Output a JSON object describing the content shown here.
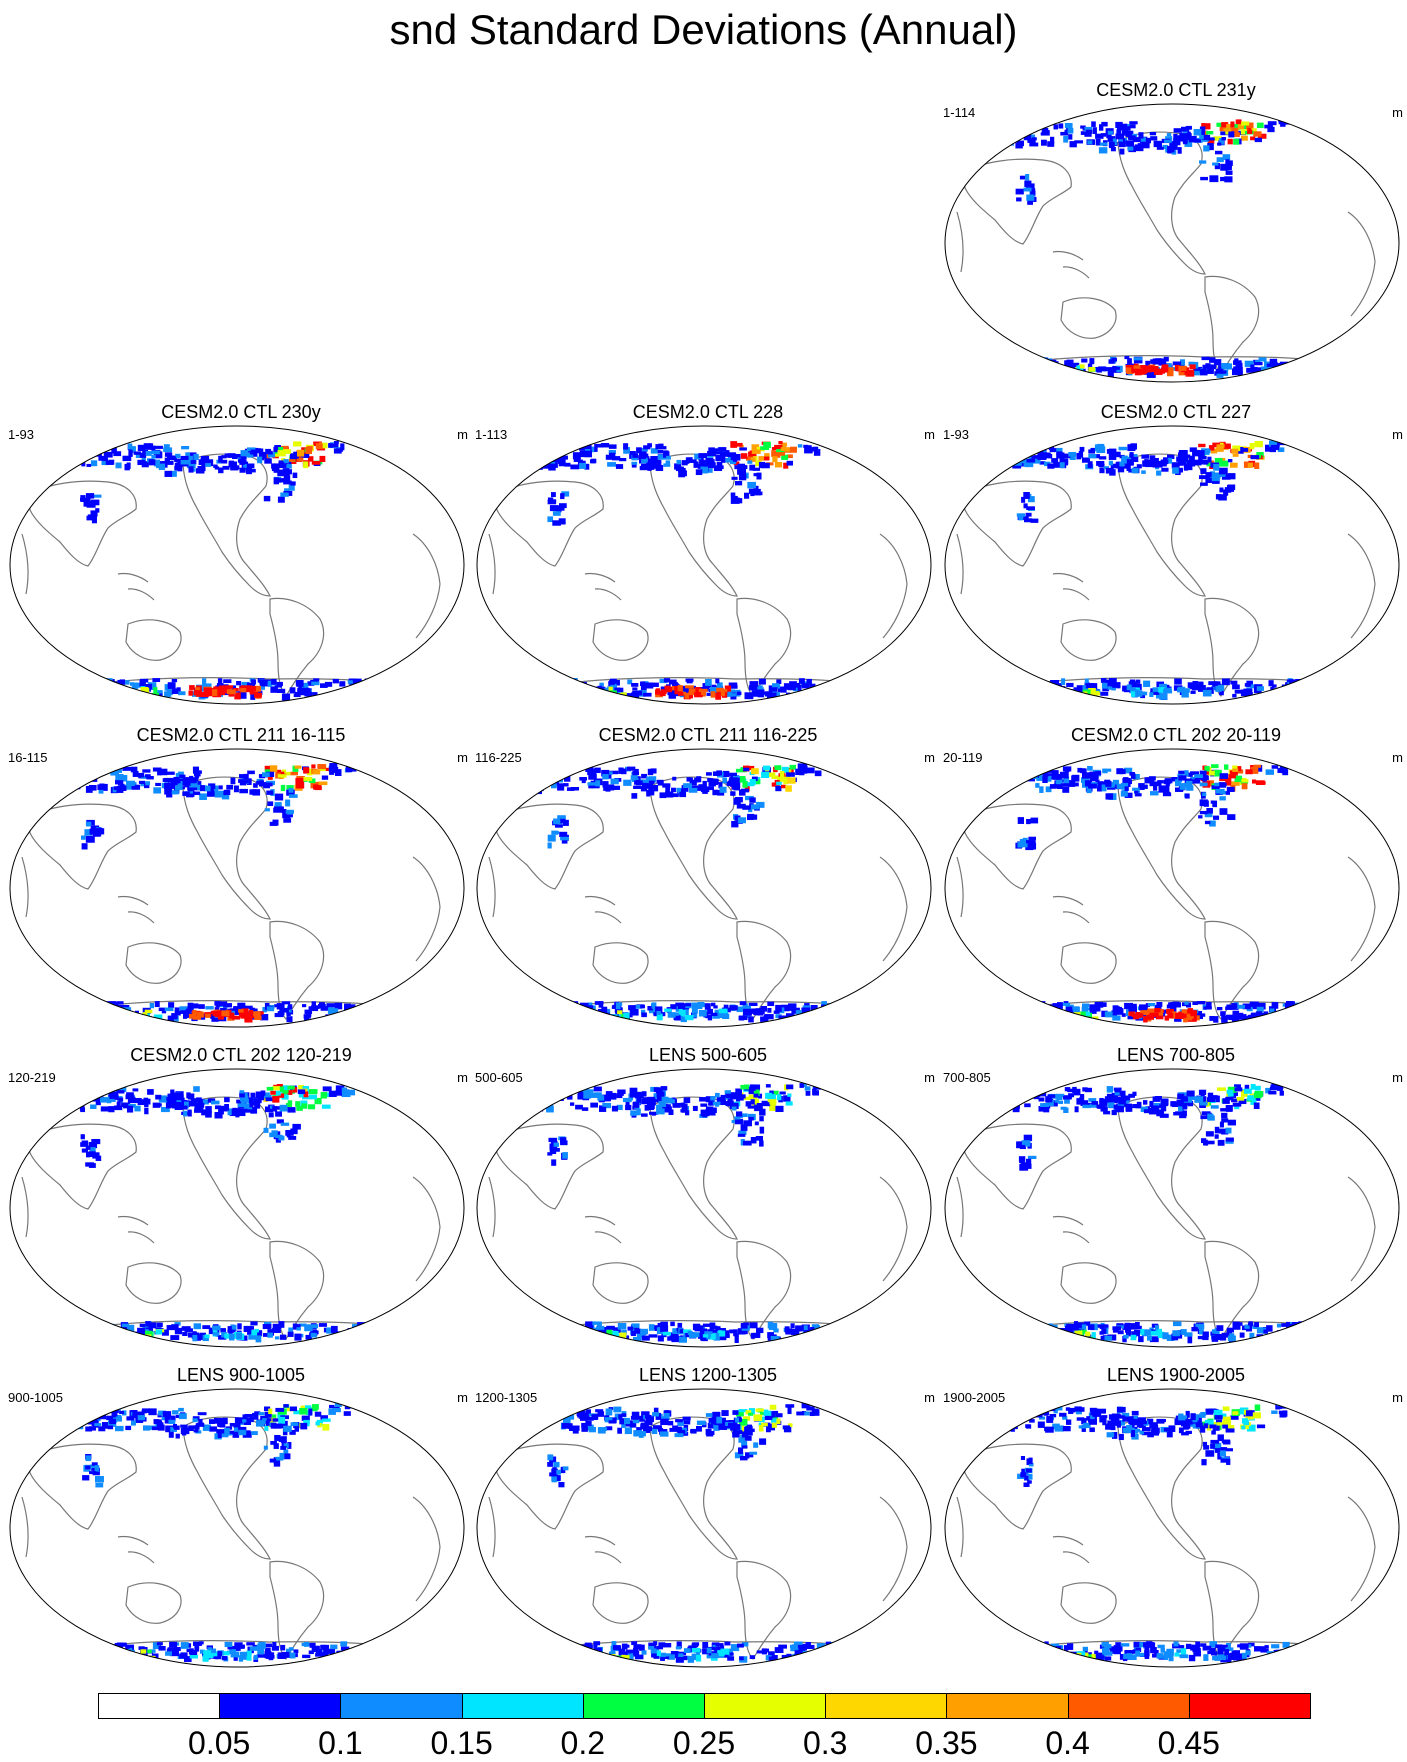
{
  "title": "snd Standard Deviations (Annual)",
  "units": "m",
  "colorbar": {
    "colors": [
      "#ffffff",
      "#0000ff",
      "#0f8cff",
      "#00e5ff",
      "#00ff40",
      "#e5ff00",
      "#ffd700",
      "#ffa000",
      "#ff5a00",
      "#ff0000"
    ],
    "labels": [
      "0.05",
      "0.1",
      "0.15",
      "0.2",
      "0.25",
      "0.3",
      "0.35",
      "0.4",
      "0.45"
    ]
  },
  "panels": [
    {
      "title": "CESM2.0 CTL 231y",
      "range": "1-114",
      "row": 0,
      "col": 2,
      "intensity": 1.0,
      "antarctic_red": true
    },
    {
      "title": "CESM2.0 CTL 230y",
      "range": "1-93",
      "row": 1,
      "col": 0,
      "intensity": 1.0,
      "antarctic_red": true
    },
    {
      "title": "CESM2.0 CTL 228",
      "range": "1-113",
      "row": 1,
      "col": 1,
      "intensity": 1.0,
      "antarctic_red": true
    },
    {
      "title": "CESM2.0 CTL 227",
      "range": "1-93",
      "row": 1,
      "col": 2,
      "intensity": 1.0,
      "antarctic_red": false
    },
    {
      "title": "CESM2.0 CTL 211 16-115",
      "range": "16-115",
      "row": 2,
      "col": 0,
      "intensity": 1.0,
      "antarctic_red": true
    },
    {
      "title": "CESM2.0 CTL 211 116-225",
      "range": "116-225",
      "row": 2,
      "col": 1,
      "intensity": 0.6,
      "antarctic_red": false
    },
    {
      "title": "CESM2.0 CTL 202 20-119",
      "range": "20-119",
      "row": 2,
      "col": 2,
      "intensity": 1.0,
      "antarctic_red": true
    },
    {
      "title": "CESM2.0 CTL 202 120-219",
      "range": "120-219",
      "row": 3,
      "col": 0,
      "intensity": 0.6,
      "antarctic_red": false
    },
    {
      "title": "LENS 500-605",
      "range": "500-605",
      "row": 3,
      "col": 1,
      "intensity": 0.3,
      "antarctic_red": false
    },
    {
      "title": "LENS 700-805",
      "range": "700-805",
      "row": 3,
      "col": 2,
      "intensity": 0.3,
      "antarctic_red": false
    },
    {
      "title": "LENS 900-1005",
      "range": "900-1005",
      "row": 4,
      "col": 0,
      "intensity": 0.3,
      "antarctic_red": false
    },
    {
      "title": "LENS 1200-1305",
      "range": "1200-1305",
      "row": 4,
      "col": 1,
      "intensity": 0.3,
      "antarctic_red": false
    },
    {
      "title": "LENS 1900-2005",
      "range": "1900-2005",
      "row": 4,
      "col": 2,
      "intensity": 0.3,
      "antarctic_red": false
    }
  ]
}
